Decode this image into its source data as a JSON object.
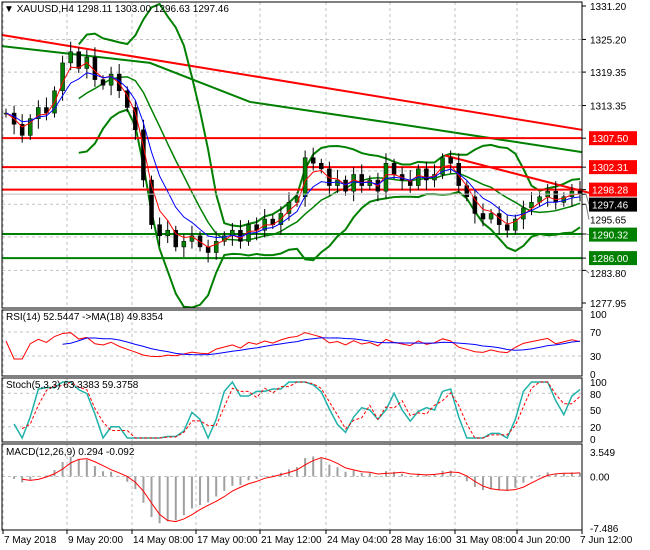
{
  "header": {
    "symbol": "XAUUSD,H4",
    "ohlc": "1298.11 1303.00 1296.63 1297.46"
  },
  "rsi": {
    "label": "RSI(14) 52.5447  ->MA(18) 49.8354",
    "ticks": [
      "100",
      "70",
      "30",
      "0"
    ]
  },
  "stoch": {
    "label": "Stoch(5,3,3) 63.3383 59.3758",
    "ticks": [
      "100",
      "80",
      "50",
      "20",
      "0"
    ]
  },
  "macd": {
    "label": "MACD(12,26,9) 0.294 -0.092",
    "ticks": [
      "3.549",
      "0.00",
      "-7.486"
    ]
  },
  "chart_data": {
    "type": "candlestick",
    "price_ticks": [
      "1331.20",
      "1325.20",
      "1319.35",
      "1313.35",
      "1295.65",
      "1283.80",
      "1277.95"
    ],
    "ylim": [
      1277.95,
      1331.2
    ],
    "levels": [
      {
        "price": 1307.5,
        "label": "1307.50",
        "color": "#ff0000"
      },
      {
        "price": 1302.31,
        "label": "1302.31",
        "color": "#ff0000"
      },
      {
        "price": 1298.28,
        "label": "1298.28",
        "color": "#ff0000"
      },
      {
        "price": 1290.32,
        "label": "1290.32",
        "color": "#008000"
      },
      {
        "price": 1286.0,
        "label": "1286.00",
        "color": "#008000"
      }
    ],
    "current_price": "1297.46",
    "trendline": {
      "from": 1304.4,
      "to": 1297.2,
      "color": "#ff0000"
    },
    "x_ticks": [
      "7 May 2018",
      "9 May 20:00",
      "14 May 08:00",
      "17 May 00:00",
      "21 May 12:00",
      "24 May 04:00",
      "28 May 16:00",
      "31 May 08:00",
      "4 Jun 20:00",
      "7 Jun 12:00"
    ],
    "closes": [
      1312,
      1310,
      1308,
      1311,
      1313,
      1312,
      1316,
      1321,
      1323,
      1320,
      1322,
      1318,
      1317,
      1319,
      1316,
      1313,
      1309,
      1300,
      1292,
      1290,
      1291,
      1288,
      1289,
      1290,
      1288,
      1287,
      1289,
      1290,
      1291,
      1289,
      1292,
      1291,
      1293,
      1292,
      1294,
      1296,
      1297,
      1304,
      1303,
      1302,
      1299,
      1300,
      1298,
      1301,
      1299,
      1300,
      1298,
      1303,
      1301,
      1300,
      1299,
      1302,
      1300,
      1301,
      1304,
      1303,
      1299,
      1297,
      1294,
      1293,
      1294,
      1292,
      1291,
      1293,
      1295,
      1296,
      1297,
      1298,
      1296,
      1297,
      1298,
      1297.46
    ],
    "colors": {
      "up": "#008000",
      "down": "#000000",
      "ma_fast": "#ff0000",
      "ma_slow": "#0000ff",
      "bands": "#008000",
      "ma_long_red": "#ff0000",
      "ma_long_green": "#008000"
    }
  }
}
